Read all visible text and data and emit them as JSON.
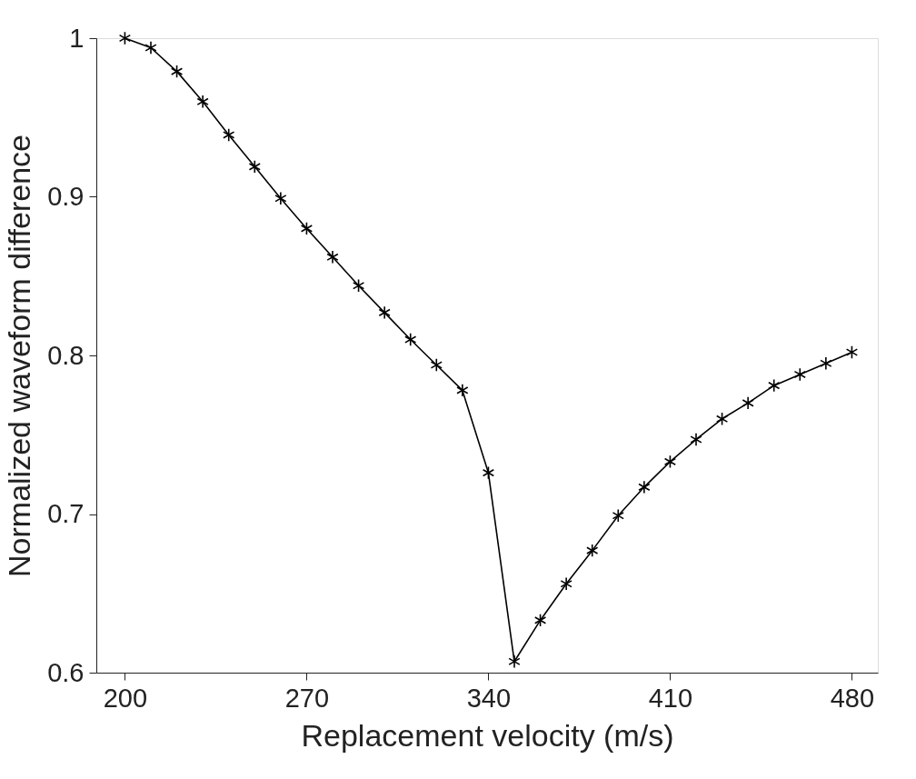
{
  "chart_data": {
    "type": "line",
    "xlabel": "Replacement velocity (m/s)",
    "ylabel": "Normalized waveform difference",
    "x": [
      200,
      210,
      220,
      230,
      240,
      250,
      260,
      270,
      280,
      290,
      300,
      310,
      320,
      330,
      340,
      350,
      360,
      370,
      380,
      390,
      400,
      410,
      420,
      430,
      440,
      450,
      460,
      470,
      480
    ],
    "series": [
      {
        "color": "#000000",
        "values": [
          1.0,
          0.994,
          0.979,
          0.96,
          0.939,
          0.919,
          0.899,
          0.88,
          0.862,
          0.844,
          0.827,
          0.81,
          0.794,
          0.778,
          0.726,
          0.607,
          0.633,
          0.656,
          0.677,
          0.699,
          0.717,
          0.733,
          0.747,
          0.76,
          0.77,
          0.781,
          0.788,
          0.795,
          0.802
        ]
      }
    ],
    "xlim": [
      189,
      490
    ],
    "xticks": [
      200,
      270,
      340,
      410,
      480
    ],
    "ylim": [
      0.6,
      1
    ],
    "yticks": [
      0.6,
      0.7,
      0.8,
      0.9,
      1
    ],
    "grid": false,
    "marker": "cross",
    "line_style": "solid"
  }
}
